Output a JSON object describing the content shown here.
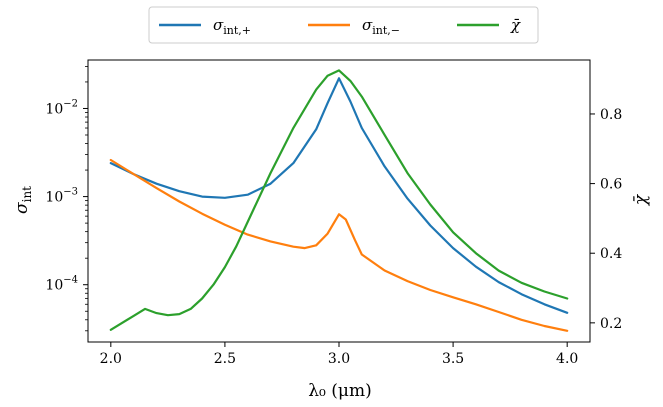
{
  "chart_data": {
    "type": "line",
    "title": "",
    "xlabel": "λ₀ (μm)",
    "ylabel_left": "σ",
    "ylabel_left_sub": "int",
    "ylabel_right": "χ̄",
    "xlim": [
      1.9,
      4.1
    ],
    "ylim_left_log10": [
      -4.65,
      -1.45
    ],
    "ylim_right": [
      0.145,
      0.955
    ],
    "x_ticks": [
      2.0,
      2.5,
      3.0,
      3.5,
      4.0
    ],
    "x_tick_labels": [
      "2.0",
      "2.5",
      "3.0",
      "3.5",
      "4.0"
    ],
    "y_left_ticks_exp": [
      -4,
      -3,
      -2
    ],
    "y_left_tick_base": "10",
    "y_left_tick_exponents": [
      "−4",
      "−3",
      "−2"
    ],
    "y_right_ticks": [
      0.2,
      0.4,
      0.6,
      0.8
    ],
    "y_right_tick_labels": [
      "0.2",
      "0.4",
      "0.6",
      "0.8"
    ],
    "legend_position": "top-center",
    "series": [
      {
        "name": "σint,+",
        "legend_main": "σ",
        "legend_sub": "int,+",
        "axis": "left",
        "color": "#1f77b4",
        "x": [
          2.0,
          2.1,
          2.2,
          2.3,
          2.4,
          2.5,
          2.6,
          2.7,
          2.8,
          2.9,
          2.95,
          3.0,
          3.05,
          3.1,
          3.2,
          3.3,
          3.4,
          3.5,
          3.6,
          3.7,
          3.8,
          3.9,
          4.0
        ],
        "values": [
          0.0024,
          0.0018,
          0.0014,
          0.00115,
          0.001,
          0.00097,
          0.00105,
          0.0014,
          0.0024,
          0.0058,
          0.0115,
          0.022,
          0.012,
          0.006,
          0.0022,
          0.00095,
          0.00047,
          0.00026,
          0.00016,
          0.000107,
          7.8e-05,
          6e-05,
          4.8e-05
        ]
      },
      {
        "name": "σint,−",
        "legend_main": "σ",
        "legend_sub": "int,−",
        "axis": "left",
        "color": "#ff7f0e",
        "x": [
          2.0,
          2.1,
          2.2,
          2.3,
          2.4,
          2.5,
          2.6,
          2.7,
          2.8,
          2.85,
          2.9,
          2.95,
          3.0,
          3.03,
          3.07,
          3.1,
          3.2,
          3.3,
          3.4,
          3.5,
          3.6,
          3.7,
          3.8,
          3.9,
          4.0
        ],
        "values": [
          0.0026,
          0.0018,
          0.00125,
          0.00088,
          0.00064,
          0.00048,
          0.00037,
          0.00031,
          0.00027,
          0.00026,
          0.00028,
          0.00038,
          0.00063,
          0.00055,
          0.00032,
          0.00022,
          0.000145,
          0.00011,
          8.7e-05,
          7.2e-05,
          6e-05,
          4.9e-05,
          4e-05,
          3.4e-05,
          3e-05
        ]
      },
      {
        "name": "χ̄",
        "legend_main": "χ̄",
        "legend_sub": "",
        "axis": "right",
        "color": "#2ca02c",
        "x": [
          2.0,
          2.1,
          2.15,
          2.2,
          2.25,
          2.3,
          2.35,
          2.4,
          2.45,
          2.5,
          2.55,
          2.6,
          2.7,
          2.8,
          2.9,
          2.95,
          3.0,
          3.05,
          3.1,
          3.2,
          3.3,
          3.4,
          3.5,
          3.6,
          3.7,
          3.8,
          3.9,
          4.0
        ],
        "values": [
          0.18,
          0.22,
          0.24,
          0.228,
          0.222,
          0.225,
          0.24,
          0.27,
          0.31,
          0.36,
          0.42,
          0.49,
          0.63,
          0.76,
          0.87,
          0.91,
          0.925,
          0.895,
          0.85,
          0.74,
          0.63,
          0.54,
          0.46,
          0.4,
          0.35,
          0.315,
          0.29,
          0.27
        ]
      }
    ]
  }
}
